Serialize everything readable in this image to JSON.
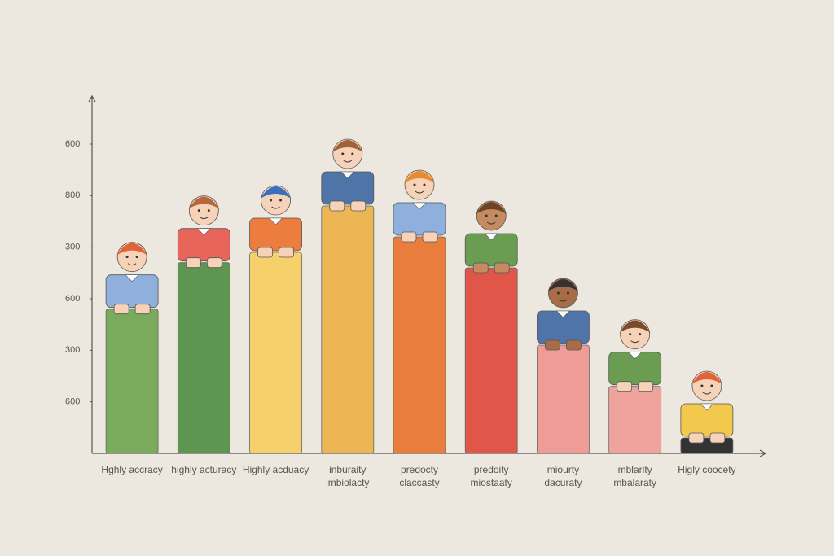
{
  "chart_data": {
    "type": "bar",
    "categories": [
      "Hghly accracy",
      "highly acturacy",
      "Highly acduacy",
      "inburaity imbiolacty",
      "predocty claccasty",
      "predoity miostaaty",
      "miourty dacuraty",
      "mblarity mbalaraty",
      "Higly coocety"
    ],
    "values": [
      2.8,
      3.7,
      3.9,
      4.8,
      4.2,
      3.6,
      2.1,
      1.3,
      0.3
    ],
    "colors": [
      "#7aab5c",
      "#5e9550",
      "#f6d06a",
      "#edb655",
      "#e97d3c",
      "#e0574a",
      "#ef9c96",
      "#f0a29c",
      "#333333"
    ],
    "ylim": [
      0,
      6.9
    ],
    "yticks": [
      {
        "value": 1,
        "label": "600"
      },
      {
        "value": 2,
        "label": "300"
      },
      {
        "value": 3,
        "label": "600"
      },
      {
        "value": 4,
        "label": "300"
      },
      {
        "value": 5,
        "label": "800"
      },
      {
        "value": 6,
        "label": "600"
      }
    ]
  }
}
